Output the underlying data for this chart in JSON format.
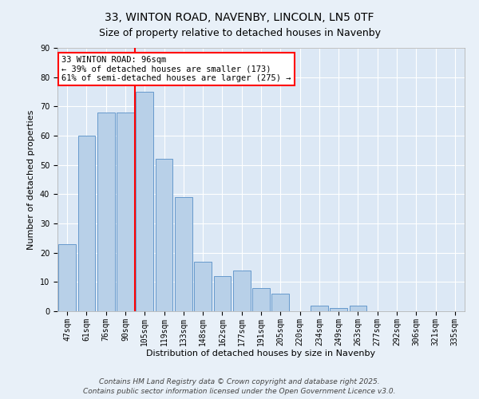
{
  "title1": "33, WINTON ROAD, NAVENBY, LINCOLN, LN5 0TF",
  "title2": "Size of property relative to detached houses in Navenby",
  "xlabel": "Distribution of detached houses by size in Navenby",
  "ylabel": "Number of detached properties",
  "categories": [
    "47sqm",
    "61sqm",
    "76sqm",
    "90sqm",
    "105sqm",
    "119sqm",
    "133sqm",
    "148sqm",
    "162sqm",
    "177sqm",
    "191sqm",
    "205sqm",
    "220sqm",
    "234sqm",
    "249sqm",
    "263sqm",
    "277sqm",
    "292sqm",
    "306sqm",
    "321sqm",
    "335sqm"
  ],
  "values": [
    23,
    60,
    68,
    68,
    75,
    52,
    39,
    17,
    12,
    14,
    8,
    6,
    0,
    2,
    1,
    2,
    0,
    0,
    0,
    0,
    0
  ],
  "bar_color": "#b8d0e8",
  "bar_edge_color": "#6699cc",
  "vline_x": 3.5,
  "vline_color": "red",
  "annotation_line1": "33 WINTON ROAD: 96sqm",
  "annotation_line2": "← 39% of detached houses are smaller (173)",
  "annotation_line3": "61% of semi-detached houses are larger (275) →",
  "annotation_box_color": "white",
  "annotation_box_edge": "red",
  "ylim": [
    0,
    90
  ],
  "yticks": [
    0,
    10,
    20,
    30,
    40,
    50,
    60,
    70,
    80,
    90
  ],
  "background_color": "#e8f0f8",
  "plot_bg_color": "#dce8f5",
  "footer": "Contains HM Land Registry data © Crown copyright and database right 2025.\nContains public sector information licensed under the Open Government Licence v3.0.",
  "title1_fontsize": 10,
  "title2_fontsize": 9,
  "axis_label_fontsize": 8,
  "tick_fontsize": 7,
  "annotation_fontsize": 7.5,
  "footer_fontsize": 6.5
}
